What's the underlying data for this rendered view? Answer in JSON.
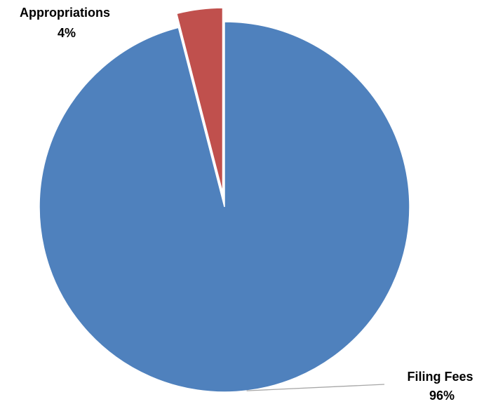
{
  "chart_data": {
    "type": "pie",
    "slices": [
      {
        "name": "Filing Fees",
        "value": 96,
        "label": "96%",
        "color": "#4F81BD"
      },
      {
        "name": "Appropriations",
        "value": 4,
        "label": "4%",
        "color": "#C0504D"
      }
    ],
    "legend": "none",
    "data_labels": "outside with category name and percentage"
  }
}
